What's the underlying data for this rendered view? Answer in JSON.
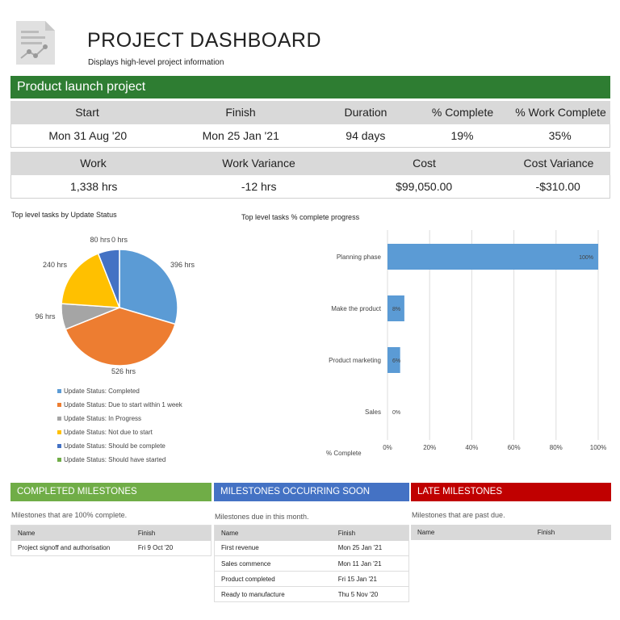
{
  "header": {
    "title": "PROJECT DASHBOARD",
    "subtitle": "Displays high-level project information"
  },
  "project": {
    "name": "Product launch project",
    "row1_labels": [
      "Start",
      "Finish",
      "Duration",
      "% Complete",
      "% Work Complete"
    ],
    "row1_values": [
      "Mon 31 Aug '20",
      "Mon 25 Jan '21",
      "94 days",
      "19%",
      "35%"
    ],
    "row2_labels": [
      "Work",
      "Work Variance",
      "Cost",
      "Cost Variance"
    ],
    "row2_values": [
      "1,338 hrs",
      "-12 hrs",
      "$99,050.00",
      "-$310.00"
    ]
  },
  "chart_data": [
    {
      "type": "pie",
      "title": "Top level tasks by Update Status",
      "categories": [
        "Update Status: Completed",
        "Update Status: Due to start within 1 week",
        "Update Status: In Progress",
        "Update Status: Not due to start",
        "Update Status: Should be complete",
        "Update Status: Should have started"
      ],
      "values": [
        396,
        526,
        96,
        240,
        80,
        0
      ],
      "labels": [
        "396 hrs",
        "526 hrs",
        "96 hrs",
        "240 hrs",
        "80 hrs",
        "0 hrs"
      ],
      "colors": [
        "#5b9bd5",
        "#ed7d31",
        "#a5a5a5",
        "#ffc000",
        "#4472c4",
        "#70ad47"
      ],
      "legend": "bottom"
    },
    {
      "type": "bar",
      "orientation": "horizontal",
      "title": "Top level tasks % complete progress",
      "categories": [
        "Planning phase",
        "Make the product",
        "Product marketing",
        "Sales"
      ],
      "values": [
        100,
        8,
        6,
        0
      ],
      "labels": [
        "100%",
        "8%",
        "6%",
        "0%"
      ],
      "xlabel": "% Complete",
      "xlim": [
        0,
        100
      ],
      "ticks": [
        "0%",
        "20%",
        "40%",
        "60%",
        "80%",
        "100%"
      ],
      "grid": true,
      "color": "#5b9bd5"
    }
  ],
  "milestones": [
    {
      "title": "COMPLETED MILESTONES",
      "color": "#70ad47",
      "desc": "Milestones that are 100% complete.",
      "cols": [
        "Name",
        "Finish"
      ],
      "rows": [
        [
          "Project signoff and authorisation",
          "Fri 9 Oct '20"
        ]
      ]
    },
    {
      "title": "MILESTONES OCCURRING SOON",
      "color": "#4472c4",
      "desc": "Milestones due in this month.",
      "cols": [
        "Name",
        "Finish"
      ],
      "rows": [
        [
          "First revenue",
          "Mon 25 Jan '21"
        ],
        [
          "Sales commence",
          "Mon 11 Jan '21"
        ],
        [
          "Product completed",
          "Fri 15 Jan '21"
        ],
        [
          "Ready to manufacture",
          "Thu 5 Nov '20"
        ]
      ]
    },
    {
      "title": "LATE MILESTONES",
      "color": "#c00000",
      "desc": "Milestones that are past due.",
      "cols": [
        "Name",
        "Finish"
      ],
      "rows": []
    }
  ]
}
